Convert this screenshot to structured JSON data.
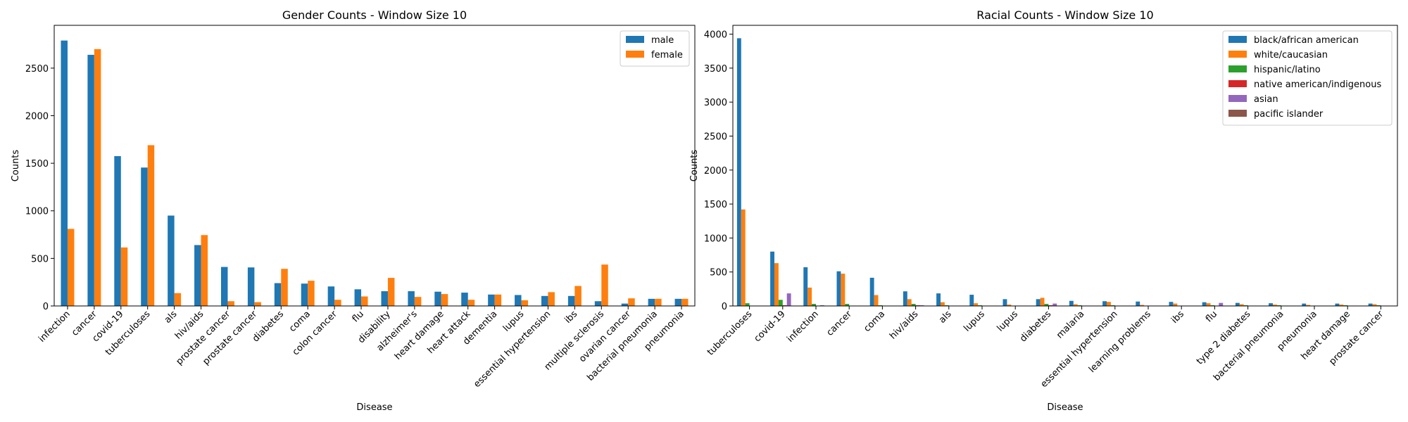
{
  "chart_data": [
    {
      "type": "bar",
      "title": "Gender Counts - Window Size 10",
      "xlabel": "Disease",
      "ylabel": "Counts",
      "ylim": [
        0,
        2950
      ],
      "yticks": [
        0,
        500,
        1000,
        1500,
        2000,
        2500
      ],
      "legend": "top-right",
      "grid": false,
      "categories": [
        "infection",
        "cancer",
        "covid-19",
        "tuberculoses",
        "als",
        "hiv/aids",
        "prostate cancer",
        "prostate cancer",
        "diabetes",
        "coma",
        "colon cancer",
        "flu",
        "disability",
        "alzheimer's",
        "heart damage",
        "heart attack",
        "dementia",
        "lupus",
        "essential hypertension",
        "ibs",
        "multiple sclerosis",
        "ovarian cancer",
        "bacterial pneumonia",
        "pneumonia"
      ],
      "series": [
        {
          "name": "male",
          "color": "#1f77b4",
          "values": [
            2790,
            2640,
            1575,
            1455,
            950,
            640,
            410,
            405,
            240,
            235,
            205,
            175,
            155,
            155,
            150,
            140,
            120,
            115,
            105,
            105,
            50,
            25,
            75,
            75
          ]
        },
        {
          "name": "female",
          "color": "#ff7f0e",
          "values": [
            810,
            2700,
            615,
            1690,
            135,
            745,
            50,
            40,
            390,
            265,
            65,
            100,
            295,
            95,
            125,
            65,
            120,
            60,
            145,
            210,
            435,
            80,
            75,
            75
          ]
        }
      ]
    },
    {
      "type": "bar",
      "title": "Racial Counts - Window Size 10",
      "xlabel": "Disease",
      "ylabel": "Counts",
      "ylim": [
        0,
        4130
      ],
      "yticks": [
        0,
        500,
        1000,
        1500,
        2000,
        2500,
        3000,
        3500,
        4000
      ],
      "legend": "top-right",
      "grid": false,
      "categories": [
        "tuberculoses",
        "covid-19",
        "infection",
        "cancer",
        "coma",
        "hiv/aids",
        "als",
        "lupus",
        "lupus",
        "diabetes",
        "malaria",
        "essential hypertension",
        "learning problems",
        "ibs",
        "flu",
        "type 2 diabetes",
        "bacterial pneumonia",
        "pneumonia",
        "heart damage",
        "prostate cancer"
      ],
      "series": [
        {
          "name": "black/african american",
          "color": "#1f77b4",
          "values": [
            3940,
            800,
            570,
            510,
            415,
            215,
            185,
            165,
            100,
            100,
            75,
            70,
            65,
            60,
            55,
            45,
            40,
            35,
            35,
            35
          ]
        },
        {
          "name": "white/caucasian",
          "color": "#ff7f0e",
          "values": [
            1420,
            630,
            270,
            475,
            160,
            100,
            55,
            40,
            20,
            120,
            25,
            60,
            15,
            35,
            40,
            25,
            20,
            15,
            20,
            25
          ]
        },
        {
          "name": "hispanic/latino",
          "color": "#2ca02c",
          "values": [
            40,
            90,
            30,
            30,
            10,
            30,
            10,
            10,
            5,
            30,
            10,
            10,
            5,
            5,
            10,
            10,
            10,
            5,
            10,
            10
          ]
        },
        {
          "name": "native american/indigenous",
          "color": "#d62728",
          "values": [
            5,
            10,
            5,
            5,
            5,
            10,
            5,
            5,
            5,
            10,
            5,
            5,
            5,
            5,
            5,
            5,
            5,
            5,
            5,
            5
          ]
        },
        {
          "name": "asian",
          "color": "#9467bd",
          "values": [
            5,
            185,
            10,
            5,
            5,
            10,
            5,
            5,
            5,
            35,
            5,
            5,
            5,
            5,
            45,
            5,
            5,
            5,
            5,
            5
          ]
        },
        {
          "name": "pacific islander",
          "color": "#8c564b",
          "values": [
            5,
            5,
            5,
            5,
            5,
            5,
            5,
            5,
            5,
            5,
            5,
            5,
            5,
            5,
            5,
            5,
            5,
            5,
            5,
            5
          ]
        }
      ]
    }
  ]
}
